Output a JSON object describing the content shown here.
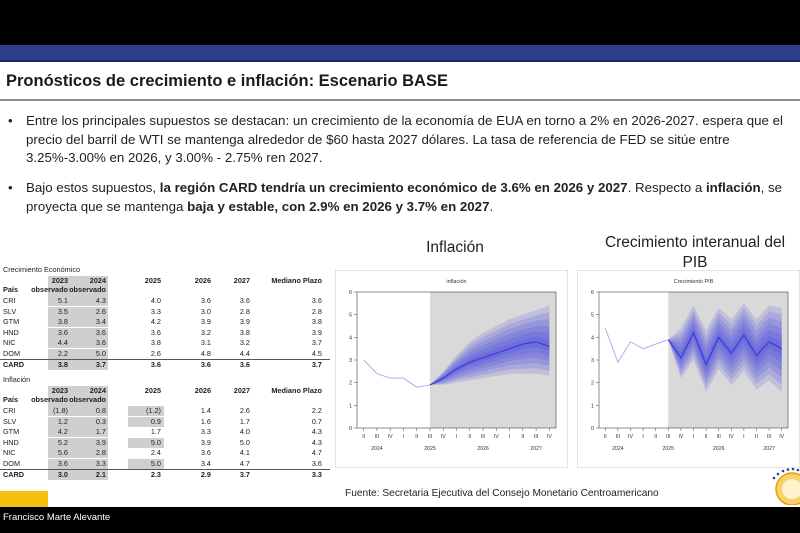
{
  "slide": {
    "title": "Pronósticos de crecimiento e inflación: Escenario BASE",
    "bullet1": "Entre los principales supuestos se destacan: un crecimiento de la economía de EUA en torno a 2% en 2026-2027. espera que el precio del barril de WTI se mantenga alrededor de $60 hasta 2027 dólares. La tasa de referencia de FED se sitúe entre 3.25%-3.00% en 2026, y 3.00% - 2.75% ren 2027.",
    "bullet2_parts": {
      "p1": "Bajo estos supuestos, ",
      "p2": "la región CARD tendría un crecimiento económico de 3.6% en 2026 y 2027",
      "p3": ". Respecto a ",
      "p4": "inflación",
      "p5": ", se proyecta que se mantenga ",
      "p6": "baja y estable, con 2.9% en 2026 y 3.7% en 2027",
      "p7": "."
    },
    "bullet_marker": "•",
    "heading_inflacion": "Inflación",
    "heading_pib_line1": "Crecimiento interanual del",
    "heading_pib_line2": "PIB",
    "source": "Fuente: Secretaria Ejecutiva del Consejo Monetario Centroamericano"
  },
  "table_growth": {
    "caption": "Crecimiento Económico",
    "header_years": [
      "2023",
      "2024",
      "2025",
      "2026",
      "2027",
      "Mediano Plazo"
    ],
    "header_sub": [
      "País",
      "observado",
      "observado"
    ],
    "rows": [
      {
        "c": "CRI",
        "v": [
          "5.1",
          "4.3",
          "4.0",
          "3.6",
          "3.6",
          "3.6"
        ]
      },
      {
        "c": "SLV",
        "v": [
          "3.5",
          "2.6",
          "3.3",
          "3.0",
          "2.8",
          "2.8"
        ]
      },
      {
        "c": "GTM",
        "v": [
          "3.8",
          "3.4",
          "4.2",
          "3.9",
          "3.9",
          "3.8"
        ]
      },
      {
        "c": "HND",
        "v": [
          "3.6",
          "3.6",
          "3.6",
          "3.2",
          "3.8",
          "3.9"
        ]
      },
      {
        "c": "NIC",
        "v": [
          "4.4",
          "3.6",
          "3.8",
          "3.1",
          "3.2",
          "3.7"
        ]
      },
      {
        "c": "DOM",
        "v": [
          "2.2",
          "5.0",
          "2.6",
          "4.8",
          "4.4",
          "4.5"
        ]
      },
      {
        "c": "CARD",
        "v": [
          "3.8",
          "3.7",
          "3.6",
          "3.6",
          "3.6",
          "3.7"
        ]
      }
    ]
  },
  "table_inflation": {
    "caption": "Inflación",
    "header_years": [
      "2023",
      "2024",
      "2025",
      "2026",
      "2027",
      "Mediano Plazo"
    ],
    "header_sub": [
      "País",
      "observado",
      "observado"
    ],
    "rows": [
      {
        "c": "CRI",
        "v": [
          "(1.8)",
          "0.8",
          "(1.2)",
          "1.4",
          "2.6",
          "2.2"
        ]
      },
      {
        "c": "SLV",
        "v": [
          "1.2",
          "0.3",
          "0.9",
          "1.6",
          "1.7",
          "0.7"
        ]
      },
      {
        "c": "GTM",
        "v": [
          "4.2",
          "1.7",
          "1.7",
          "3.3",
          "4.0",
          "4.3"
        ]
      },
      {
        "c": "HND",
        "v": [
          "5.2",
          "3.9",
          "5.0",
          "3.9",
          "5.0",
          "4.3"
        ]
      },
      {
        "c": "NIC",
        "v": [
          "5.6",
          "2.8",
          "2.4",
          "3.6",
          "4.1",
          "4.7"
        ]
      },
      {
        "c": "DOM",
        "v": [
          "3.6",
          "3.3",
          "5.0",
          "3.4",
          "4.7",
          "3.6"
        ]
      },
      {
        "c": "CARD",
        "v": [
          "3.0",
          "2.1",
          "2.3",
          "2.9",
          "3.7",
          "3.3"
        ]
      }
    ]
  },
  "chart_data": [
    {
      "type": "area",
      "title": "inflación",
      "ylim": [
        0,
        6
      ],
      "yticks": [
        "0",
        "1",
        "2",
        "3",
        "4",
        "5",
        "6"
      ],
      "quarter_labels": [
        "II",
        "III",
        "IV",
        "I",
        "II",
        "III",
        "IV",
        "I",
        "II",
        "III",
        "IV",
        "I",
        "II",
        "III",
        "IV"
      ],
      "year_labels": [
        "2024",
        "2025",
        "2026",
        "2027"
      ],
      "x": [
        "2024-II",
        "2024-III",
        "2024-IV",
        "2025-I",
        "2025-II",
        "2025-III",
        "2025-IV",
        "2026-I",
        "2026-II",
        "2026-III",
        "2026-IV",
        "2027-I",
        "2027-II",
        "2027-III",
        "2027-IV"
      ],
      "observed": [
        3.0,
        2.4,
        2.2,
        2.2,
        1.8,
        1.9,
        null,
        null,
        null,
        null,
        null,
        null,
        null,
        null,
        null
      ],
      "median": [
        null,
        null,
        null,
        null,
        null,
        1.9,
        2.2,
        2.6,
        2.9,
        3.1,
        3.3,
        3.5,
        3.7,
        3.8,
        3.6
      ],
      "band_outer_low": [
        null,
        null,
        null,
        null,
        null,
        1.9,
        1.9,
        2.0,
        2.1,
        2.2,
        2.3,
        2.4,
        2.4,
        2.4,
        2.3
      ],
      "band_outer_high": [
        null,
        null,
        null,
        null,
        null,
        1.9,
        2.5,
        3.2,
        3.8,
        4.2,
        4.5,
        4.8,
        5.0,
        5.2,
        5.4
      ],
      "forecast_start": "2025-III",
      "grid": false,
      "series_color": "#3a3ae0",
      "observed_color": "#b0aee8",
      "shade_color": "#d9d9d9"
    },
    {
      "type": "area",
      "title": "Crecimiento PIB",
      "ylim": [
        0,
        6
      ],
      "yticks": [
        "0",
        "1",
        "2",
        "3",
        "4",
        "5",
        "6"
      ],
      "quarter_labels": [
        "II",
        "III",
        "IV",
        "I",
        "II",
        "III",
        "IV",
        "I",
        "II",
        "III",
        "IV",
        "I",
        "II",
        "III",
        "IV"
      ],
      "year_labels": [
        "2024",
        "2025",
        "2026",
        "2027"
      ],
      "x": [
        "2024-II",
        "2024-III",
        "2024-IV",
        "2025-I",
        "2025-II",
        "2025-III",
        "2025-IV",
        "2026-I",
        "2026-II",
        "2026-III",
        "2026-IV",
        "2027-I",
        "2027-II",
        "2027-III",
        "2027-IV"
      ],
      "observed": [
        4.4,
        2.9,
        3.8,
        3.5,
        3.7,
        3.9,
        null,
        null,
        null,
        null,
        null,
        null,
        null,
        null,
        null
      ],
      "median": [
        null,
        null,
        null,
        null,
        null,
        3.9,
        3.1,
        4.2,
        2.8,
        4.0,
        3.3,
        4.1,
        3.2,
        3.8,
        3.5
      ],
      "band_outer_low": [
        null,
        null,
        null,
        null,
        null,
        3.9,
        2.2,
        3.0,
        1.6,
        2.6,
        1.9,
        2.5,
        1.7,
        2.1,
        1.6
      ],
      "band_outer_high": [
        null,
        null,
        null,
        null,
        null,
        3.9,
        4.4,
        5.4,
        4.3,
        5.3,
        4.8,
        5.5,
        4.8,
        5.4,
        5.3
      ],
      "forecast_start": "2025-III",
      "grid": false,
      "series_color": "#3a3ae0",
      "observed_color": "#b0aee8",
      "shade_color": "#d9d9d9"
    }
  ],
  "footer": {
    "presenter": "Francisco Marte Alevante",
    "accent_color": "#f4c20d"
  },
  "colors": {
    "header_bar": "#2f3e8c",
    "table_shade": "#cfcfcf"
  }
}
